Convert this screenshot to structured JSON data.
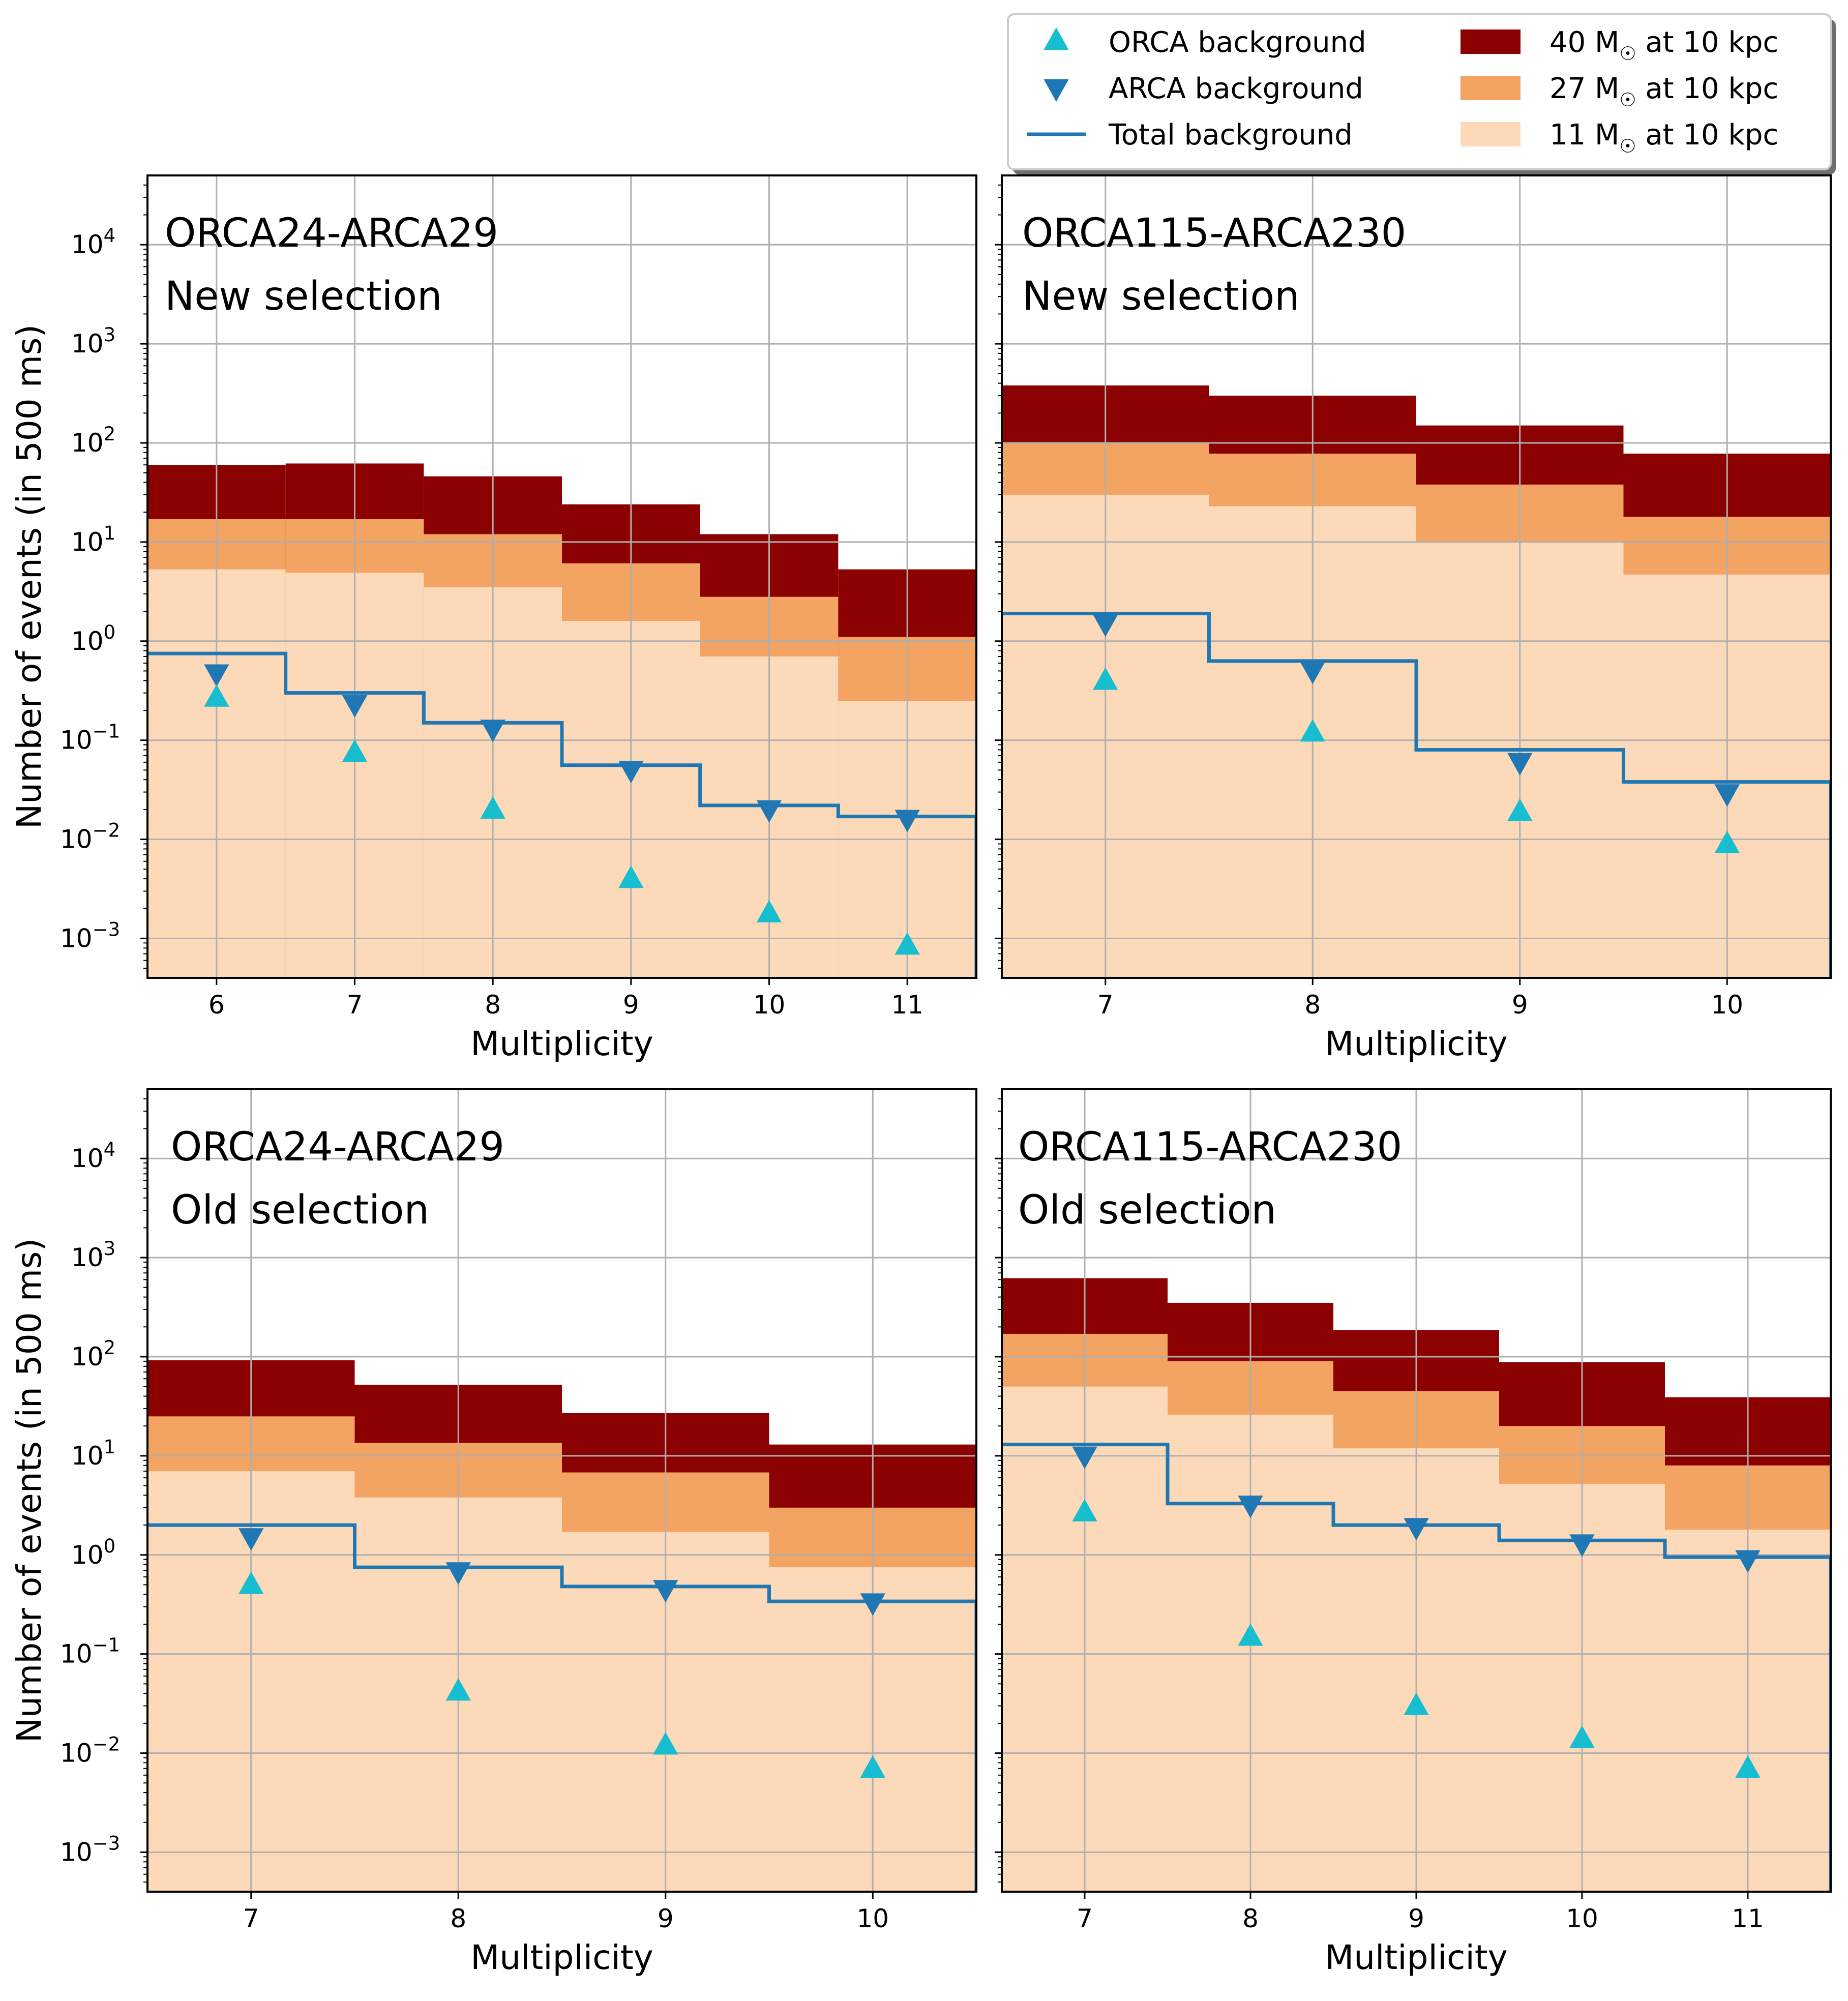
{
  "colors": {
    "m40": "#8b0000",
    "m27": "#f4a462",
    "m11": "#fcd9b8",
    "orca": "#17becf",
    "arca": "#1f77b4",
    "total": "#1f77b4",
    "grid": "#b0b0b0"
  },
  "legend": {
    "orca": "ORCA background",
    "arca": "ARCA background",
    "total": "Total background",
    "m40": "40 M",
    "m27": "27 M",
    "m11": "11 M",
    "sun_symbol": "☉",
    "suffix": " at 10 kpc"
  },
  "chart_data": [
    {
      "type": "bar",
      "title_line1": "ORCA24-ARCA29",
      "title_line2": "New selection",
      "xlabel": "Multiplicity",
      "ylabel": "Number of events (in 500 ms)",
      "yscale": "log",
      "ylim": [
        0.0004,
        50000
      ],
      "xlim": [
        5.5,
        11.5
      ],
      "categories": [
        6,
        7,
        8,
        9,
        10,
        11
      ],
      "series": [
        {
          "name": "40 M☉ at 10 kpc",
          "values": [
            60,
            62,
            46,
            24,
            12,
            5.3
          ]
        },
        {
          "name": "27 M☉ at 10 kpc",
          "values": [
            17,
            17,
            12,
            6.1,
            2.8,
            1.1
          ]
        },
        {
          "name": "11 M☉ at 10 kpc",
          "values": [
            5.3,
            4.9,
            3.5,
            1.6,
            0.7,
            0.25
          ]
        },
        {
          "name": "Total background",
          "values": [
            0.75,
            0.3,
            0.15,
            0.056,
            0.022,
            0.017
          ]
        },
        {
          "name": "ARCA background",
          "values": [
            0.47,
            0.23,
            0.13,
            0.05,
            0.02,
            0.016
          ]
        },
        {
          "name": "ORCA background",
          "values": [
            0.27,
            0.075,
            0.02,
            0.004,
            0.0018,
            0.00085
          ]
        }
      ]
    },
    {
      "type": "bar",
      "title_line1": "ORCA115-ARCA230",
      "title_line2": "New selection",
      "xlabel": "Multiplicity",
      "ylabel": "",
      "yscale": "log",
      "ylim": [
        0.0004,
        50000
      ],
      "xlim": [
        6.5,
        10.5
      ],
      "categories": [
        7,
        8,
        9,
        10
      ],
      "series": [
        {
          "name": "40 M☉ at 10 kpc",
          "values": [
            380,
            300,
            150,
            78
          ]
        },
        {
          "name": "27 M☉ at 10 kpc",
          "values": [
            100,
            78,
            38,
            18
          ]
        },
        {
          "name": "11 M☉ at 10 kpc",
          "values": [
            30,
            23,
            10,
            4.7
          ]
        },
        {
          "name": "Total background",
          "values": [
            1.9,
            0.63,
            0.08,
            0.038
          ]
        },
        {
          "name": "ARCA background",
          "values": [
            1.5,
            0.5,
            0.06,
            0.029
          ]
        },
        {
          "name": "ORCA background",
          "values": [
            0.4,
            0.12,
            0.019,
            0.009
          ]
        }
      ]
    },
    {
      "type": "bar",
      "title_line1": "ORCA24-ARCA29",
      "title_line2": "Old selection",
      "xlabel": "Multiplicity",
      "ylabel": "Number of events (in 500 ms)",
      "yscale": "log",
      "ylim": [
        0.0004,
        50000
      ],
      "xlim": [
        6.5,
        10.5
      ],
      "categories": [
        7,
        8,
        9,
        10
      ],
      "series": [
        {
          "name": "40 M☉ at 10 kpc",
          "values": [
            92,
            52,
            27,
            13
          ]
        },
        {
          "name": "27 M☉ at 10 kpc",
          "values": [
            25,
            13.5,
            6.8,
            3
          ]
        },
        {
          "name": "11 M☉ at 10 kpc",
          "values": [
            7,
            3.8,
            1.7,
            0.75
          ]
        },
        {
          "name": "Total background",
          "values": [
            2,
            0.75,
            0.48,
            0.34
          ]
        },
        {
          "name": "ARCA background",
          "values": [
            1.5,
            0.68,
            0.45,
            0.33
          ]
        },
        {
          "name": "ORCA background",
          "values": [
            0.5,
            0.042,
            0.012,
            0.007
          ]
        }
      ]
    },
    {
      "type": "bar",
      "title_line1": "ORCA115-ARCA230",
      "title_line2": "Old selection",
      "xlabel": "Multiplicity",
      "ylabel": "",
      "yscale": "log",
      "ylim": [
        0.0004,
        50000
      ],
      "xlim": [
        6.5,
        11.5
      ],
      "categories": [
        7,
        8,
        9,
        10,
        11
      ],
      "series": [
        {
          "name": "40 M☉ at 10 kpc",
          "values": [
            620,
            350,
            185,
            88,
            39
          ]
        },
        {
          "name": "27 M☉ at 10 kpc",
          "values": [
            170,
            90,
            45,
            20,
            8
          ]
        },
        {
          "name": "11 M☉ at 10 kpc",
          "values": [
            50,
            26,
            12,
            5.2,
            1.8
          ]
        },
        {
          "name": "Total background",
          "values": [
            13,
            3.3,
            2,
            1.4,
            0.95
          ]
        },
        {
          "name": "ARCA background",
          "values": [
            10,
            3.2,
            1.9,
            1.3,
            0.9
          ]
        },
        {
          "name": "ORCA background",
          "values": [
            2.7,
            0.15,
            0.03,
            0.014,
            0.007
          ]
        }
      ]
    }
  ]
}
